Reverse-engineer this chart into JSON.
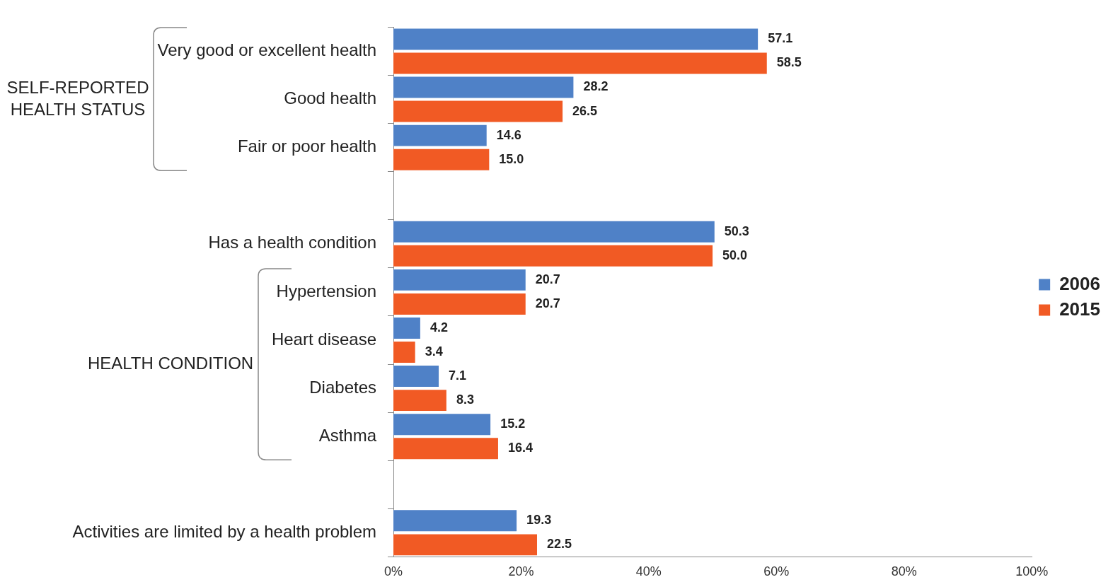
{
  "chart_data": {
    "type": "bar",
    "orientation": "horizontal",
    "categories": [
      "Very good or excellent health",
      "Good health",
      "Fair or poor health",
      null,
      "Has a health condition",
      "Hypertension",
      "Heart disease",
      "Diabetes",
      "Asthma",
      null,
      "Activities are limited by a health problem"
    ],
    "series": [
      {
        "name": "2006",
        "color": "#4f81c7",
        "values": [
          57.1,
          28.2,
          14.6,
          null,
          50.3,
          20.7,
          4.2,
          7.1,
          15.2,
          null,
          19.3
        ],
        "value_labels": [
          "57.1",
          "28.2",
          "14.6",
          null,
          "50.3",
          "20.7",
          "4.2",
          "7.1",
          "15.2",
          null,
          "19.3"
        ]
      },
      {
        "name": "2015",
        "color": "#f15a24",
        "values": [
          58.5,
          26.5,
          15.0,
          null,
          50.0,
          20.7,
          3.4,
          8.3,
          16.4,
          null,
          22.5
        ],
        "value_labels": [
          "58.5",
          "26.5",
          "15.0",
          null,
          "50.0",
          "20.7",
          "3.4",
          "8.3",
          "16.4",
          null,
          "22.5"
        ]
      }
    ],
    "xlim": [
      0,
      100
    ],
    "xticks": [
      {
        "value": 0,
        "label": "0%"
      },
      {
        "value": 20,
        "label": "20%"
      },
      {
        "value": 40,
        "label": "40%"
      },
      {
        "value": 60,
        "label": "60%"
      },
      {
        "value": 80,
        "label": "80%"
      },
      {
        "value": 100,
        "label": "100%"
      }
    ],
    "grid": false,
    "legend": "right",
    "annotations": [
      "SELF-REPORTED\nHEALTH STATUS",
      "HEALTH CONDITION"
    ]
  }
}
